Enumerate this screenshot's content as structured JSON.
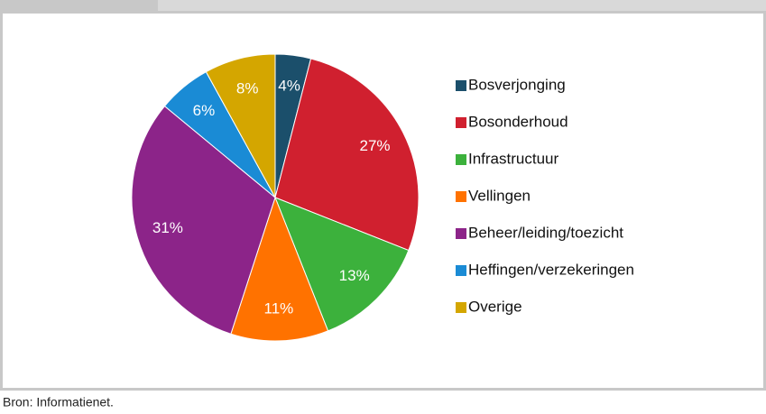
{
  "chart_data": {
    "type": "pie",
    "categories": [
      "Bosverjonging",
      "Bosonderhoud",
      "Infrastructuur",
      "Vellingen",
      "Beheer/leiding/toezicht",
      "Heffingen/verzekeringen",
      "Overige"
    ],
    "values": [
      4,
      27,
      13,
      11,
      31,
      6,
      8
    ],
    "value_labels": [
      "4%",
      "27%",
      "13%",
      "11%",
      "31%",
      "6%",
      "8%"
    ],
    "colors": [
      "#1b4f6b",
      "#d0202f",
      "#3cb13c",
      "#ff7200",
      "#8c2489",
      "#1a8bd5",
      "#d4a600"
    ],
    "legend": "right"
  },
  "source": "Bron: Informatienet."
}
